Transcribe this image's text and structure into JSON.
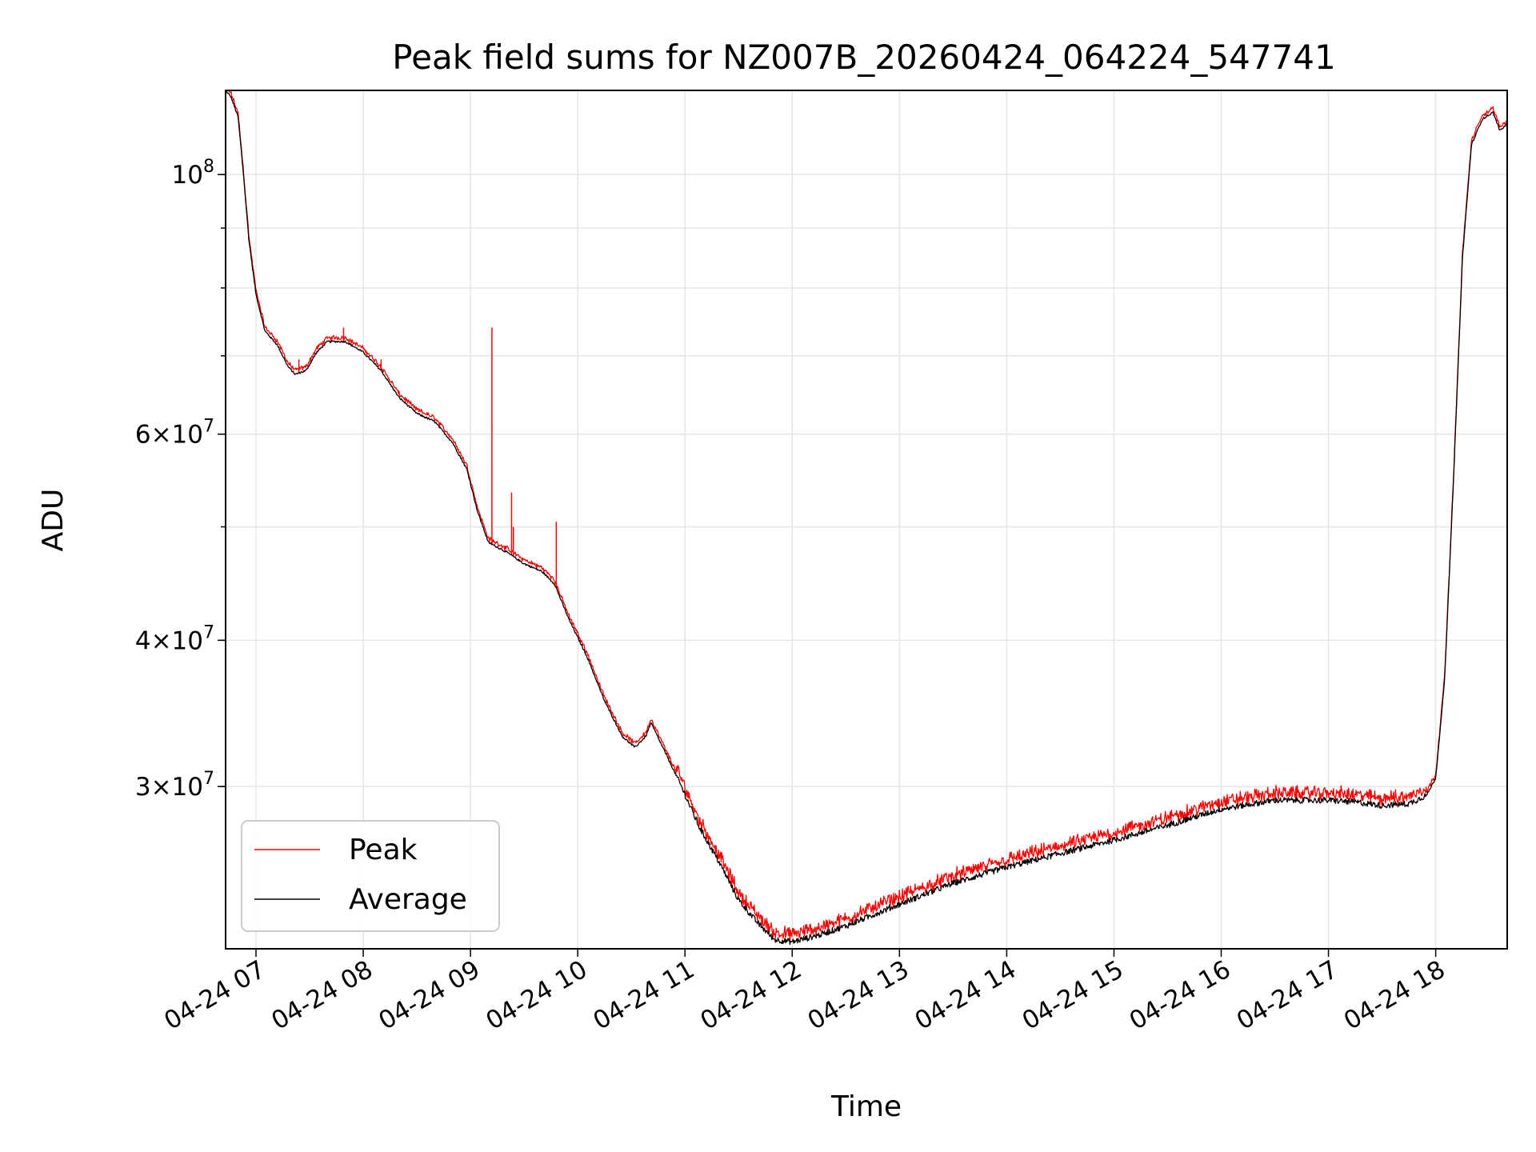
{
  "chart_data": {
    "type": "line",
    "title": "Peak field sums for NZ007B_20260424_064224_547741",
    "xlabel": "Time",
    "ylabel": "ADU",
    "yscale": "log",
    "xlim": [
      "04-24 06:43",
      "04-24 18:40"
    ],
    "ylim": [
      21800000,
      118000000
    ],
    "grid": true,
    "legend_position": "lower-left",
    "x_ticks": [
      "04-24 07",
      "04-24 08",
      "04-24 09",
      "04-24 10",
      "04-24 11",
      "04-24 12",
      "04-24 13",
      "04-24 14",
      "04-24 15",
      "04-24 16",
      "04-24 17",
      "04-24 18"
    ],
    "y_ticks": [
      {
        "value": 100000000,
        "base": "10",
        "exp": "8",
        "coef": ""
      },
      {
        "value": 60000000,
        "base": "10",
        "exp": "7",
        "coef": "6"
      },
      {
        "value": 40000000,
        "base": "10",
        "exp": "7",
        "coef": "4"
      },
      {
        "value": 30000000,
        "base": "10",
        "exp": "7",
        "coef": "3"
      }
    ],
    "series": [
      {
        "name": "Peak",
        "color": "#ff0000",
        "spikes": [
          {
            "x": "04-24 07:24",
            "y": 69500000
          },
          {
            "x": "04-24 07:49",
            "y": 74000000
          },
          {
            "x": "04-24 08:10",
            "y": 69500000
          },
          {
            "x": "04-24 09:12",
            "y": 74000000
          },
          {
            "x": "04-24 09:23",
            "y": 53500000
          },
          {
            "x": "04-24 09:24",
            "y": 50000000
          },
          {
            "x": "04-24 09:37",
            "y": 46500000
          },
          {
            "x": "04-24 09:48",
            "y": 50500000
          }
        ]
      },
      {
        "name": "Average",
        "color": "#000000"
      }
    ],
    "average_curve": [
      [
        "04-24 06:43",
        118000000
      ],
      [
        "04-24 06:46",
        116500000
      ],
      [
        "04-24 06:50",
        112000000
      ],
      [
        "04-24 06:53",
        100000000
      ],
      [
        "04-24 06:56",
        88000000
      ],
      [
        "04-24 07:00",
        79000000
      ],
      [
        "04-24 07:05",
        73500000
      ],
      [
        "04-24 07:12",
        71500000
      ],
      [
        "04-24 07:18",
        68500000
      ],
      [
        "04-24 07:22",
        67500000
      ],
      [
        "04-24 07:28",
        68000000
      ],
      [
        "04-24 07:34",
        70500000
      ],
      [
        "04-24 07:40",
        72000000
      ],
      [
        "04-24 07:50",
        72000000
      ],
      [
        "04-24 08:00",
        70500000
      ],
      [
        "04-24 08:10",
        68000000
      ],
      [
        "04-24 08:20",
        64500000
      ],
      [
        "04-24 08:30",
        62500000
      ],
      [
        "04-24 08:40",
        61500000
      ],
      [
        "04-24 08:50",
        59000000
      ],
      [
        "04-24 08:58",
        56000000
      ],
      [
        "04-24 09:04",
        51500000
      ],
      [
        "04-24 09:10",
        48500000
      ],
      [
        "04-24 09:20",
        47600000
      ],
      [
        "04-24 09:30",
        46500000
      ],
      [
        "04-24 09:40",
        45800000
      ],
      [
        "04-24 09:47",
        44700000
      ],
      [
        "04-24 09:55",
        41700000
      ],
      [
        "04-24 10:05",
        38800000
      ],
      [
        "04-24 10:15",
        35500000
      ],
      [
        "04-24 10:25",
        33100000
      ],
      [
        "04-24 10:32",
        32400000
      ],
      [
        "04-24 10:38",
        33100000
      ],
      [
        "04-24 10:41",
        34000000
      ],
      [
        "04-24 10:48",
        32300000
      ],
      [
        "04-24 10:58",
        30000000
      ],
      [
        "04-24 11:08",
        27700000
      ],
      [
        "04-24 11:20",
        25700000
      ],
      [
        "04-24 11:30",
        24000000
      ],
      [
        "04-24 11:40",
        23000000
      ],
      [
        "04-24 11:50",
        22200000
      ],
      [
        "04-24 12:00",
        22100000
      ],
      [
        "04-24 12:15",
        22400000
      ],
      [
        "04-24 12:30",
        22800000
      ],
      [
        "04-24 12:45",
        23300000
      ],
      [
        "04-24 13:00",
        23800000
      ],
      [
        "04-24 13:30",
        24800000
      ],
      [
        "04-24 14:00",
        25600000
      ],
      [
        "04-24 14:30",
        26300000
      ],
      [
        "04-24 15:00",
        27000000
      ],
      [
        "04-24 15:30",
        27800000
      ],
      [
        "04-24 16:00",
        28700000
      ],
      [
        "04-24 16:30",
        29200000
      ],
      [
        "04-24 17:00",
        29200000
      ],
      [
        "04-24 17:15",
        29100000
      ],
      [
        "04-24 17:30",
        28900000
      ],
      [
        "04-24 17:45",
        29000000
      ],
      [
        "04-24 17:55",
        29500000
      ],
      [
        "04-24 18:00",
        30500000
      ],
      [
        "04-24 18:05",
        37000000
      ],
      [
        "04-24 18:10",
        55000000
      ],
      [
        "04-24 18:15",
        85000000
      ],
      [
        "04-24 18:20",
        106000000
      ],
      [
        "04-24 18:26",
        111500000
      ],
      [
        "04-24 18:32",
        113000000
      ],
      [
        "04-24 18:36",
        109000000
      ],
      [
        "04-24 18:40",
        110500000
      ]
    ]
  }
}
